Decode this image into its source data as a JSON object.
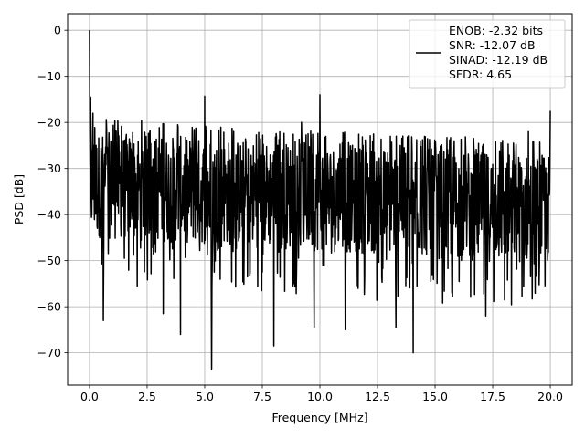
{
  "chart_data": {
    "type": "line",
    "xlabel": "Frequency [MHz]",
    "ylabel": "PSD [dB]",
    "xlim": [
      -0.95,
      20.95
    ],
    "ylim": [
      -77,
      3.6
    ],
    "xticks": [
      0.0,
      2.5,
      5.0,
      7.5,
      10.0,
      12.5,
      15.0,
      17.5,
      20.0
    ],
    "xtick_labels": [
      "0.0",
      "2.5",
      "5.0",
      "7.5",
      "10.0",
      "12.5",
      "15.0",
      "17.5",
      "20.0"
    ],
    "yticks": [
      0,
      -10,
      -20,
      -30,
      -40,
      -50,
      -60,
      -70
    ],
    "ytick_labels": [
      "0",
      "−10",
      "−20",
      "−30",
      "−40",
      "−50",
      "−60",
      "−70"
    ],
    "grid": true,
    "legend": {
      "placement": "top-right",
      "lines": [
        "ENOB: -2.32 bits",
        "SNR: -12.07 dB",
        "SINAD: -12.19 dB",
        "SFDR: 4.65"
      ]
    },
    "series": [
      {
        "color": "#000000",
        "noise_floor_db": -36,
        "peaks": [
          {
            "x": 0.0,
            "y": 0.0
          },
          {
            "x": 0.05,
            "y": -14.5
          },
          {
            "x": 0.15,
            "y": -18
          },
          {
            "x": 0.6,
            "y": -63
          },
          {
            "x": 3.2,
            "y": -61.5
          },
          {
            "x": 3.95,
            "y": -66
          },
          {
            "x": 5.0,
            "y": -14.3
          },
          {
            "x": 5.3,
            "y": -73.5
          },
          {
            "x": 8.0,
            "y": -68.5
          },
          {
            "x": 9.2,
            "y": -20
          },
          {
            "x": 9.75,
            "y": -64.5
          },
          {
            "x": 10.0,
            "y": -14
          },
          {
            "x": 11.1,
            "y": -65
          },
          {
            "x": 13.3,
            "y": -64.5
          },
          {
            "x": 14.05,
            "y": -70
          },
          {
            "x": 17.2,
            "y": -62
          },
          {
            "x": 19.05,
            "y": -22
          },
          {
            "x": 20.0,
            "y": -17.5
          }
        ]
      }
    ]
  }
}
